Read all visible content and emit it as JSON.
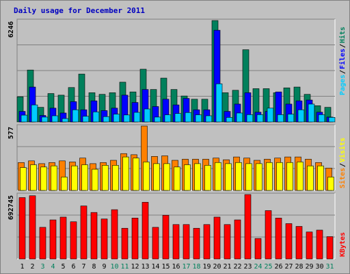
{
  "title": "Daily usage for December 2011",
  "colors": {
    "hits": "#00805c",
    "files": "#0000ff",
    "pages": "#00ccff",
    "visits": "#ff8000",
    "sites": "#ffff00",
    "kbytes": "#ff0000",
    "weekday_label": "#000000",
    "weekend_label": "#00805c",
    "plot_bg": "#c0c0c0"
  },
  "chart_data": [
    {
      "type": "bar",
      "panel": "hits-files-pages",
      "ymax_label": "6246",
      "ylim": [
        0,
        6246
      ],
      "legend": {
        "pages": "Pages",
        "files": "Files",
        "hits": "Hits",
        "sep": "/"
      },
      "categories": [
        "1",
        "2",
        "3",
        "4",
        "5",
        "6",
        "7",
        "8",
        "9",
        "10",
        "11",
        "12",
        "13",
        "14",
        "15",
        "16",
        "17",
        "18",
        "19",
        "20",
        "21",
        "22",
        "23",
        "24",
        "25",
        "26",
        "27",
        "28",
        "29",
        "30",
        "31"
      ],
      "weekend": [
        "3",
        "4",
        "10",
        "11",
        "17",
        "18",
        "24",
        "25",
        "31"
      ],
      "series": [
        {
          "name": "Hits",
          "key": "hits",
          "values": [
            1550,
            3200,
            900,
            1750,
            1650,
            2120,
            2950,
            1800,
            1700,
            1800,
            2450,
            1850,
            3250,
            2000,
            2700,
            2000,
            1600,
            1400,
            1400,
            6246,
            1800,
            1950,
            4450,
            2050,
            2050,
            1800,
            2100,
            2150,
            1700,
            1000,
            900
          ]
        },
        {
          "name": "Files",
          "key": "files",
          "values": [
            650,
            2150,
            400,
            850,
            550,
            1250,
            750,
            1300,
            700,
            850,
            1650,
            1200,
            2000,
            950,
            1400,
            1050,
            1450,
            750,
            750,
            5650,
            650,
            1100,
            1800,
            600,
            650,
            1850,
            1100,
            1300,
            1350,
            600,
            300
          ]
        },
        {
          "name": "Pages",
          "key": "pages",
          "values": [
            420,
            1050,
            300,
            380,
            210,
            750,
            350,
            620,
            330,
            480,
            430,
            590,
            800,
            300,
            440,
            520,
            580,
            440,
            380,
            2350,
            280,
            550,
            450,
            450,
            850,
            450,
            480,
            750,
            1100,
            450,
            280
          ]
        }
      ]
    },
    {
      "type": "bar",
      "panel": "visits-sites",
      "ymax_label": "577",
      "ylim": [
        0,
        577
      ],
      "legend": {
        "sites": "Sites",
        "visits": "Visits",
        "sep": "/"
      },
      "categories": [
        "1",
        "2",
        "3",
        "4",
        "5",
        "6",
        "7",
        "8",
        "9",
        "10",
        "11",
        "12",
        "13",
        "14",
        "15",
        "16",
        "17",
        "18",
        "19",
        "20",
        "21",
        "22",
        "23",
        "24",
        "25",
        "26",
        "27",
        "28",
        "29",
        "30",
        "31"
      ],
      "series": [
        {
          "name": "Visits",
          "key": "visits",
          "values": [
            250,
            265,
            240,
            250,
            265,
            255,
            290,
            240,
            250,
            270,
            330,
            320,
            577,
            305,
            310,
            270,
            280,
            280,
            280,
            290,
            275,
            300,
            290,
            270,
            280,
            290,
            300,
            300,
            280,
            250,
            200
          ]
        },
        {
          "name": "Sites",
          "key": "sites",
          "values": [
            205,
            230,
            210,
            220,
            120,
            220,
            230,
            190,
            225,
            225,
            300,
            290,
            255,
            240,
            240,
            210,
            230,
            240,
            225,
            250,
            240,
            250,
            240,
            240,
            250,
            250,
            250,
            255,
            220,
            220,
            120
          ]
        }
      ]
    },
    {
      "type": "bar",
      "panel": "kbytes",
      "ymax_label": "692745",
      "ylim": [
        0,
        692745
      ],
      "legend": {
        "kbytes": "KBytes"
      },
      "categories": [
        "1",
        "2",
        "3",
        "4",
        "5",
        "6",
        "7",
        "8",
        "9",
        "10",
        "11",
        "12",
        "13",
        "14",
        "15",
        "16",
        "17",
        "18",
        "19",
        "20",
        "21",
        "22",
        "23",
        "24",
        "25",
        "26",
        "27",
        "28",
        "29",
        "30",
        "31"
      ],
      "series": [
        {
          "name": "KBytes",
          "key": "kbytes",
          "values": [
            660000,
            680000,
            340000,
            420000,
            450000,
            400000,
            570000,
            500000,
            430000,
            530000,
            330000,
            440000,
            610000,
            340000,
            470000,
            370000,
            370000,
            330000,
            370000,
            450000,
            370000,
            420000,
            692745,
            220000,
            520000,
            440000,
            380000,
            350000,
            290000,
            310000,
            240000
          ]
        }
      ]
    }
  ]
}
